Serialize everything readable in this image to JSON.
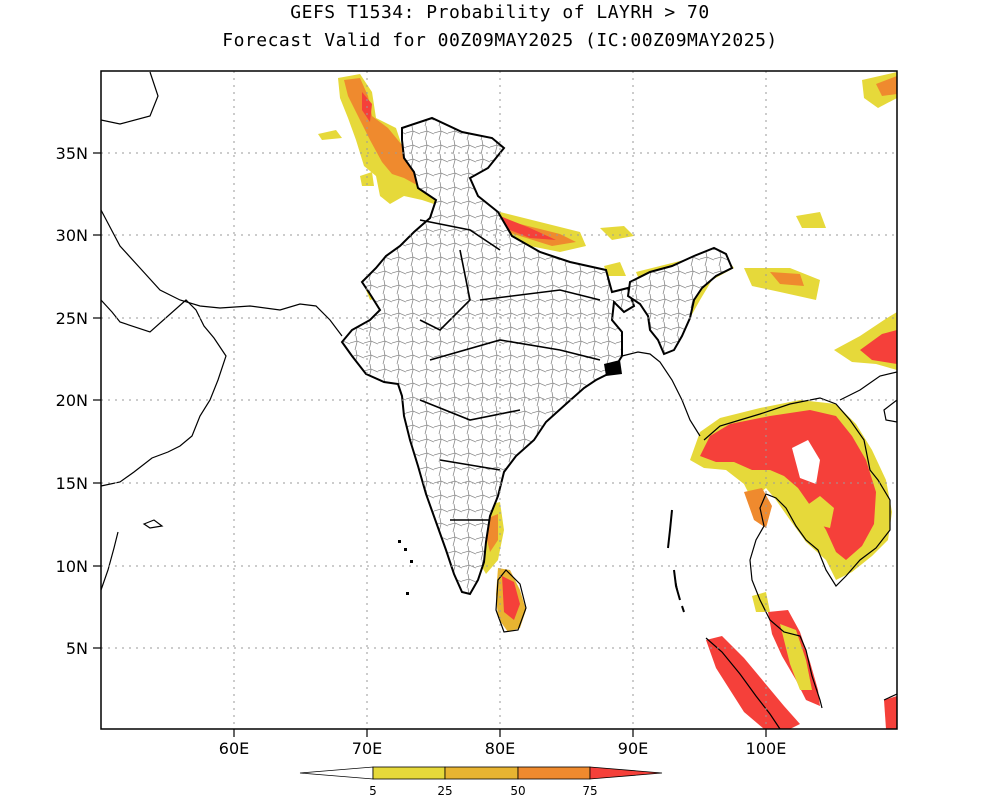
{
  "title": {
    "line1": "GEFS T1534: Probability of LAYRH > 70",
    "line2": "Forecast Valid for 00Z09MAY2025 (IC:00Z09MAY2025)"
  },
  "map": {
    "lon_labels": [
      "60E",
      "70E",
      "80E",
      "90E",
      "100E"
    ],
    "lat_labels": [
      "35N",
      "30N",
      "25N",
      "20N",
      "15N",
      "10N",
      "5N"
    ],
    "grid_style": "dotted",
    "land_fill": "#ffffff",
    "border_color": "#000000",
    "district_color": "#7a7a7a"
  },
  "colorbar": {
    "tick_labels": [
      "5",
      "25",
      "50",
      "75"
    ],
    "colors": {
      "below_5": "#ffffff",
      "5_25": "#e6d93a",
      "25_50": "#e8b431",
      "50_75": "#ef8a2e",
      "above_75": "#f5403a"
    }
  }
}
